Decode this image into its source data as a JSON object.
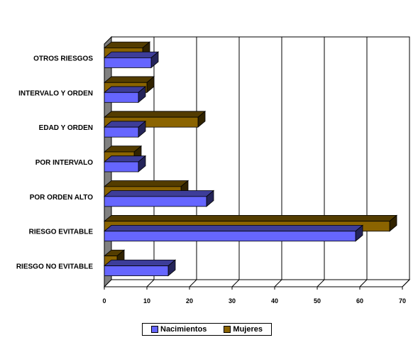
{
  "chart_data": {
    "type": "bar",
    "orientation": "horizontal",
    "three_d": true,
    "categories": [
      "OTROS RIESGOS",
      "INTERVALO Y ORDEN",
      "EDAD Y ORDEN",
      "POR INTERVALO",
      "POR ORDEN ALTO",
      "RIESGO EVITABLE",
      "RIESGO NO EVITABLE"
    ],
    "series": [
      {
        "name": "Nacimientos",
        "color": "#6666ff",
        "values": [
          11,
          8,
          8,
          8,
          24,
          59,
          15
        ]
      },
      {
        "name": "Mujeres",
        "color": "#8b6400",
        "values": [
          9,
          10,
          22,
          7,
          18,
          67,
          3
        ]
      }
    ],
    "x_ticks": [
      "0",
      "10",
      "20",
      "30",
      "40",
      "50",
      "60",
      "70"
    ],
    "xlim": [
      0,
      70
    ],
    "grid": true,
    "legend_position": "bottom"
  }
}
